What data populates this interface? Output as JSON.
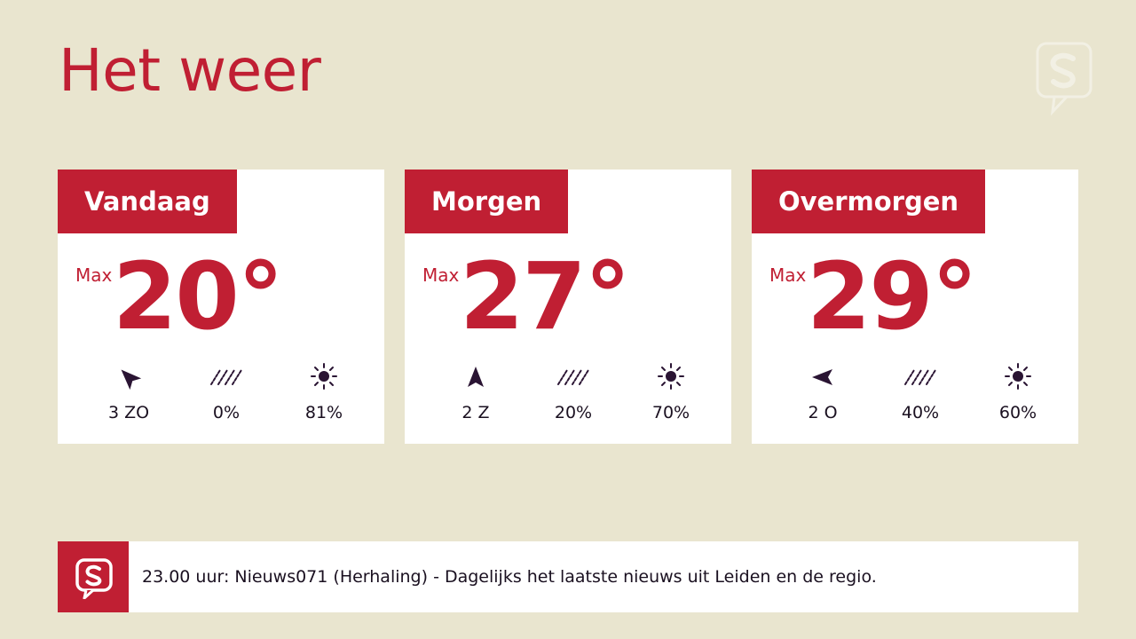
{
  "page": {
    "title": "Het weer"
  },
  "colors": {
    "accent": "#c01f33",
    "background": "#e9e5cf",
    "icon": "#2a1433"
  },
  "forecast": [
    {
      "day": "Vandaag",
      "max_label": "Max",
      "temperature": "20°",
      "wind": "3 ZO",
      "wind_icon": "wind-arrow-icon",
      "rain": "0%",
      "rain_icon": "rain-icon",
      "sun": "81%",
      "sun_icon": "sun-icon"
    },
    {
      "day": "Morgen",
      "max_label": "Max",
      "temperature": "27°",
      "wind": "2 Z",
      "wind_icon": "wind-arrow-icon",
      "rain": "20%",
      "rain_icon": "rain-icon",
      "sun": "70%",
      "sun_icon": "sun-icon"
    },
    {
      "day": "Overmorgen",
      "max_label": "Max",
      "temperature": "29°",
      "wind": "2 O",
      "wind_icon": "wind-arrow-icon",
      "rain": "40%",
      "rain_icon": "rain-icon",
      "sun": "60%",
      "sun_icon": "sun-icon"
    }
  ],
  "ticker": {
    "logo_icon": "sleutelstad-logo-icon",
    "text": "23.00 uur: Nieuws071 (Herhaling) - Dagelijks het laatste nieuws uit Leiden en de regio."
  }
}
